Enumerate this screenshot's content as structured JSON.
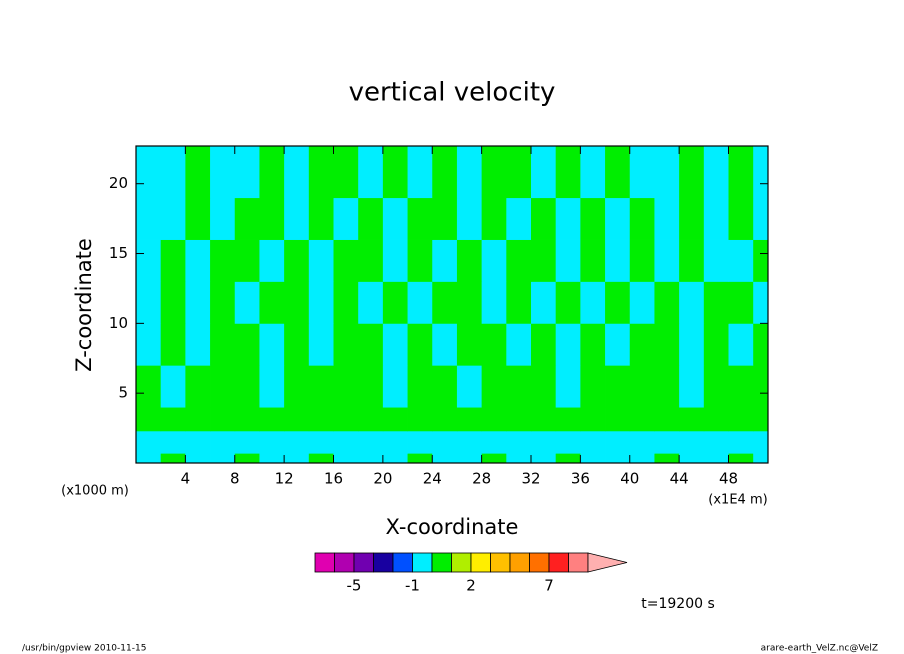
{
  "chart_data": {
    "type": "contour",
    "title": "vertical velocity",
    "xlabel": "X-coordinate",
    "ylabel": "Z-coordinate",
    "x_unit_left": "(x1000 m)",
    "x_unit_right": "(x1E4 m)",
    "annotation": "t=19200 s",
    "footer_left": "/usr/bin/gpview   2010-11-15",
    "footer_right": "arare-earth_VelZ.nc@VelZ",
    "xlim": [
      0,
      51.2
    ],
    "ylim": [
      0,
      22.7
    ],
    "xticks": [
      4,
      8,
      12,
      16,
      20,
      24,
      28,
      32,
      36,
      40,
      44,
      48
    ],
    "yticks": [
      5,
      10,
      15,
      20
    ],
    "field": {
      "x_edges": [
        0,
        2,
        4,
        6,
        8,
        10,
        12,
        14,
        16,
        18,
        20,
        22,
        24,
        26,
        28,
        30,
        32,
        34,
        36,
        38,
        40,
        42,
        44,
        46,
        48,
        50,
        51.2
      ],
      "z_edges": [
        0,
        0.7,
        2.3,
        4,
        7,
        10,
        13,
        16,
        19,
        22.7
      ],
      "values": [
        [
          -0.5,
          0.5,
          -0.5,
          -0.5,
          0.5,
          -0.5,
          -0.5,
          0.5,
          -0.5,
          -0.5,
          -0.5,
          0.5,
          -0.5,
          -0.5,
          0.5,
          -0.5,
          -0.5,
          0.5,
          -0.5,
          -0.5,
          -0.5,
          0.5,
          -0.5,
          -0.5,
          0.5,
          -0.5
        ],
        [
          -0.5,
          -0.5,
          -0.5,
          -0.5,
          -0.5,
          -0.5,
          -0.5,
          -0.5,
          -0.5,
          -0.5,
          -0.5,
          -0.5,
          -0.5,
          -0.5,
          -0.5,
          -0.5,
          -0.5,
          -0.5,
          -0.5,
          -0.5,
          -0.5,
          -0.5,
          -0.5,
          -0.5,
          -0.5,
          -0.5
        ],
        [
          0.5,
          0.5,
          0.5,
          0.5,
          0.5,
          0.5,
          0.5,
          0.5,
          0.5,
          0.5,
          0.5,
          0.5,
          0.5,
          0.5,
          0.5,
          0.5,
          0.5,
          0.5,
          0.5,
          0.5,
          0.5,
          0.5,
          0.5,
          0.5,
          0.5,
          0.5
        ],
        [
          0.5,
          -0.5,
          0.5,
          0.5,
          0.5,
          -0.5,
          0.5,
          0.5,
          0.5,
          0.5,
          -0.5,
          0.5,
          0.5,
          -0.5,
          0.5,
          0.5,
          0.5,
          -0.5,
          0.5,
          0.5,
          0.5,
          0.5,
          -0.5,
          0.5,
          0.5,
          0.5
        ],
        [
          -0.5,
          0.5,
          -0.5,
          0.5,
          0.5,
          -0.5,
          0.5,
          -0.5,
          0.5,
          0.5,
          -0.5,
          0.5,
          -0.5,
          0.5,
          0.5,
          -0.5,
          0.5,
          -0.5,
          0.5,
          -0.5,
          0.5,
          0.5,
          -0.5,
          0.5,
          -0.5,
          0.5
        ],
        [
          -0.5,
          0.5,
          -0.5,
          0.5,
          -0.5,
          0.5,
          0.5,
          -0.5,
          0.5,
          -0.5,
          0.5,
          -0.5,
          0.5,
          0.5,
          -0.5,
          0.5,
          -0.5,
          0.5,
          -0.5,
          0.5,
          -0.5,
          0.5,
          -0.5,
          0.5,
          0.5,
          -0.5
        ],
        [
          -0.5,
          0.5,
          -0.5,
          0.5,
          0.5,
          -0.5,
          0.5,
          -0.5,
          0.5,
          0.5,
          -0.5,
          0.5,
          -0.5,
          0.5,
          -0.5,
          0.5,
          0.5,
          -0.5,
          0.5,
          -0.5,
          0.5,
          -0.5,
          0.5,
          -0.5,
          -0.5,
          0.5
        ],
        [
          -0.5,
          -0.5,
          0.5,
          -0.5,
          0.5,
          0.5,
          -0.5,
          0.5,
          -0.5,
          0.5,
          -0.5,
          0.5,
          0.5,
          -0.5,
          0.5,
          -0.5,
          0.5,
          -0.5,
          0.5,
          -0.5,
          0.5,
          -0.5,
          0.5,
          -0.5,
          0.5,
          -0.5
        ],
        [
          -0.5,
          -0.5,
          0.5,
          -0.5,
          -0.5,
          0.5,
          -0.5,
          0.5,
          0.5,
          -0.5,
          0.5,
          -0.5,
          0.5,
          -0.5,
          0.5,
          0.5,
          -0.5,
          0.5,
          -0.5,
          0.5,
          -0.5,
          -0.5,
          0.5,
          -0.5,
          0.5,
          -0.5
        ]
      ]
    },
    "levels": [
      -7,
      -5,
      -3,
      -2,
      -1,
      0,
      1,
      2,
      3,
      4,
      5,
      7,
      10,
      15
    ],
    "colors": [
      "#e000b0",
      "#b000b0",
      "#7000b0",
      "#1800a0",
      "#0050ff",
      "#00eeff",
      "#00ee00",
      "#b0ee00",
      "#ffee00",
      "#ffc000",
      "#ffa000",
      "#ff7000",
      "#ff2020",
      "#ff8080",
      "#ffb0b0"
    ],
    "colorbar_ticks": [
      -5,
      -1,
      2,
      7
    ]
  }
}
